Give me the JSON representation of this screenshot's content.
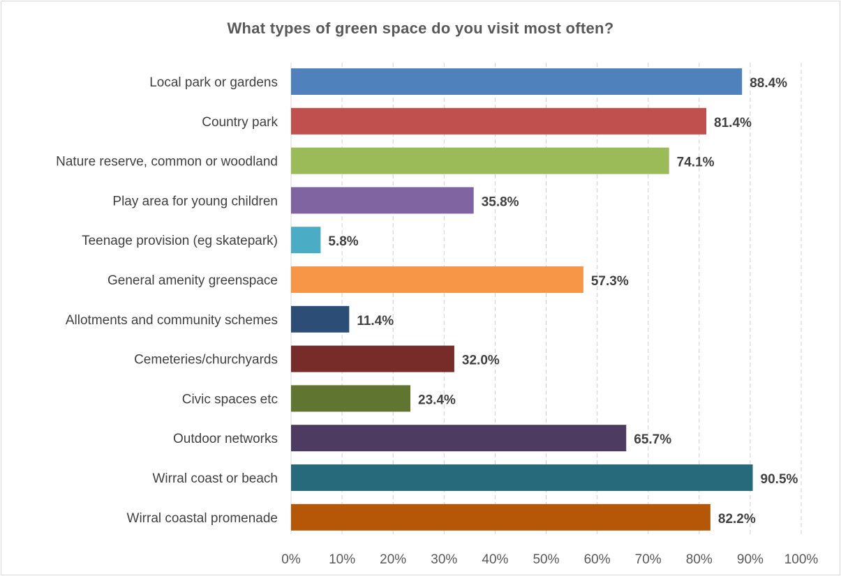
{
  "chart_data": {
    "type": "bar",
    "orientation": "horizontal",
    "title": "What types of green space do you visit most often?",
    "categories": [
      "Local park or gardens",
      "Country park",
      "Nature reserve, common or woodland",
      "Play area for young children",
      "Teenage provision (eg skatepark)",
      "General amenity greenspace",
      "Allotments and community schemes",
      "Cemeteries/churchyards",
      "Civic spaces etc",
      "Outdoor networks",
      "Wirral coast or beach",
      "Wirral coastal promenade"
    ],
    "values": [
      88.4,
      81.4,
      74.1,
      35.8,
      5.8,
      57.3,
      11.4,
      32.0,
      23.4,
      65.7,
      90.5,
      82.2
    ],
    "data_labels": [
      "88.4%",
      "81.4%",
      "74.1%",
      "35.8%",
      "5.8%",
      "57.3%",
      "11.4%",
      "32.0%",
      "23.4%",
      "65.7%",
      "90.5%",
      "82.2%"
    ],
    "colors": [
      "#4f81bd",
      "#c0504d",
      "#9bbb59",
      "#8064a2",
      "#4bacc6",
      "#f79646",
      "#2c4d75",
      "#772c2a",
      "#5f7530",
      "#4d3b62",
      "#276a7c",
      "#b65708"
    ],
    "xlim": [
      0,
      100
    ],
    "xticks": [
      "0%",
      "10%",
      "20%",
      "30%",
      "40%",
      "50%",
      "60%",
      "70%",
      "80%",
      "90%",
      "100%"
    ],
    "gridlines": "vertical-dashed",
    "legend": "none"
  }
}
